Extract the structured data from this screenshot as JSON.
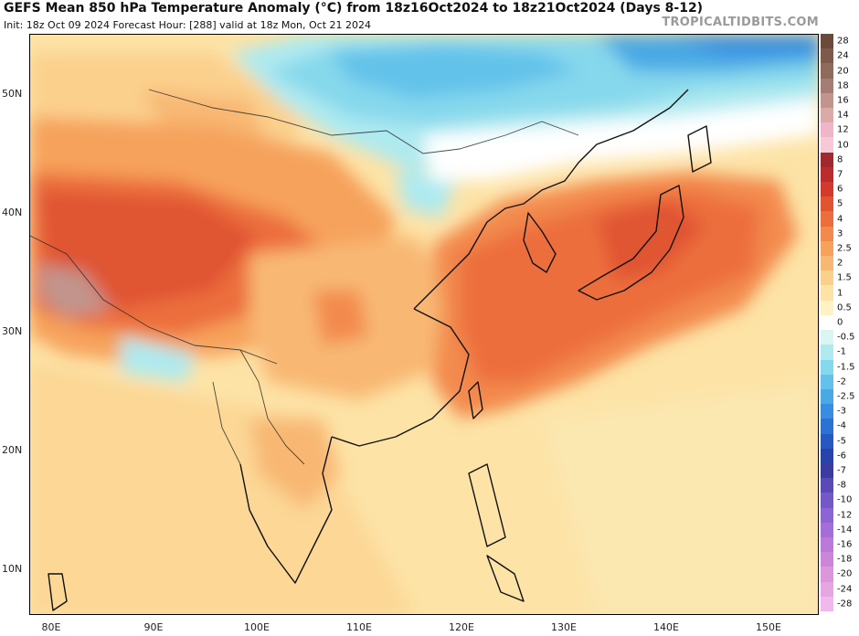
{
  "header": {
    "title": "GEFS Mean 850 hPa Temperature Anomaly (°C) from 18z16Oct2024 to 18z21Oct2024 (Days 8-12)",
    "subtitle": "Init: 18z Oct 09 2024   Forecast Hour: [288]   valid at 18z Mon, Oct 21 2024",
    "site": "TROPICALTIDBITS.COM"
  },
  "map": {
    "lat_labels": [
      "50N",
      "40N",
      "30N",
      "20N",
      "10N"
    ],
    "lon_labels": [
      "80E",
      "90E",
      "100E",
      "110E",
      "120E",
      "130E",
      "140E",
      "150E"
    ]
  },
  "colorbar": {
    "labels": [
      "28",
      "24",
      "20",
      "18",
      "16",
      "14",
      "12",
      "10",
      "8",
      "7",
      "6",
      "5",
      "4",
      "3",
      "2.5",
      "2",
      "1.5",
      "1",
      "0.5",
      "0",
      "-0.5",
      "-1",
      "-1.5",
      "-2",
      "-2.5",
      "-3",
      "-4",
      "-5",
      "-6",
      "-7",
      "-8",
      "-10",
      "-12",
      "-14",
      "-16",
      "-18",
      "-20",
      "-24",
      "-28"
    ],
    "colors": [
      "#6b4a3a",
      "#7d5a4a",
      "#8f6b5c",
      "#a57d72",
      "#c1948c",
      "#d9aaa6",
      "#f0b5c8",
      "#f7c8d6",
      "#a0282f",
      "#bb2c2c",
      "#d33a2c",
      "#e05530",
      "#ec6e3c",
      "#f38a4d",
      "#f6a25c",
      "#f8b873",
      "#fbd08d",
      "#fde3a6",
      "#fff3c6",
      "#ffffff",
      "#d8f6f4",
      "#aeeaf0",
      "#86d8ec",
      "#64c2ea",
      "#4aa8e4",
      "#388de0",
      "#2c72d4",
      "#2658c0",
      "#2844a8",
      "#3c3ca0",
      "#5a4ab8",
      "#7458c8",
      "#8c64d4",
      "#a46ed8",
      "#bb7ad8",
      "#cc86d8",
      "#db96dc",
      "#e6a6e2",
      "#f0b8ec"
    ]
  }
}
